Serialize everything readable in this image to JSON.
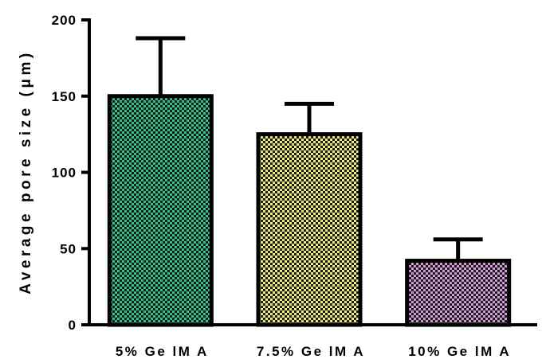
{
  "chart_data": {
    "type": "bar",
    "categories": [
      "5% GelMA",
      "7.5% GelMA",
      "10% GelMA"
    ],
    "category_labels": [
      "5% Ge lM A",
      "7.5% Ge lM A",
      "10% Ge lM A"
    ],
    "values": [
      150,
      125,
      42
    ],
    "error_upper": [
      188,
      145,
      56
    ],
    "title": "",
    "xlabel": "",
    "ylabel": "Average pore size (μm)",
    "ylim": [
      0,
      200
    ],
    "yticks": [
      0,
      50,
      100,
      150,
      200
    ],
    "ytick_labels": [
      "0",
      "50",
      "100",
      "150",
      "200"
    ],
    "grid": false,
    "legend": "none",
    "colors": [
      "#2fc48c",
      "#f0ec78",
      "#d29cd9"
    ],
    "pattern": "checkerboard"
  }
}
